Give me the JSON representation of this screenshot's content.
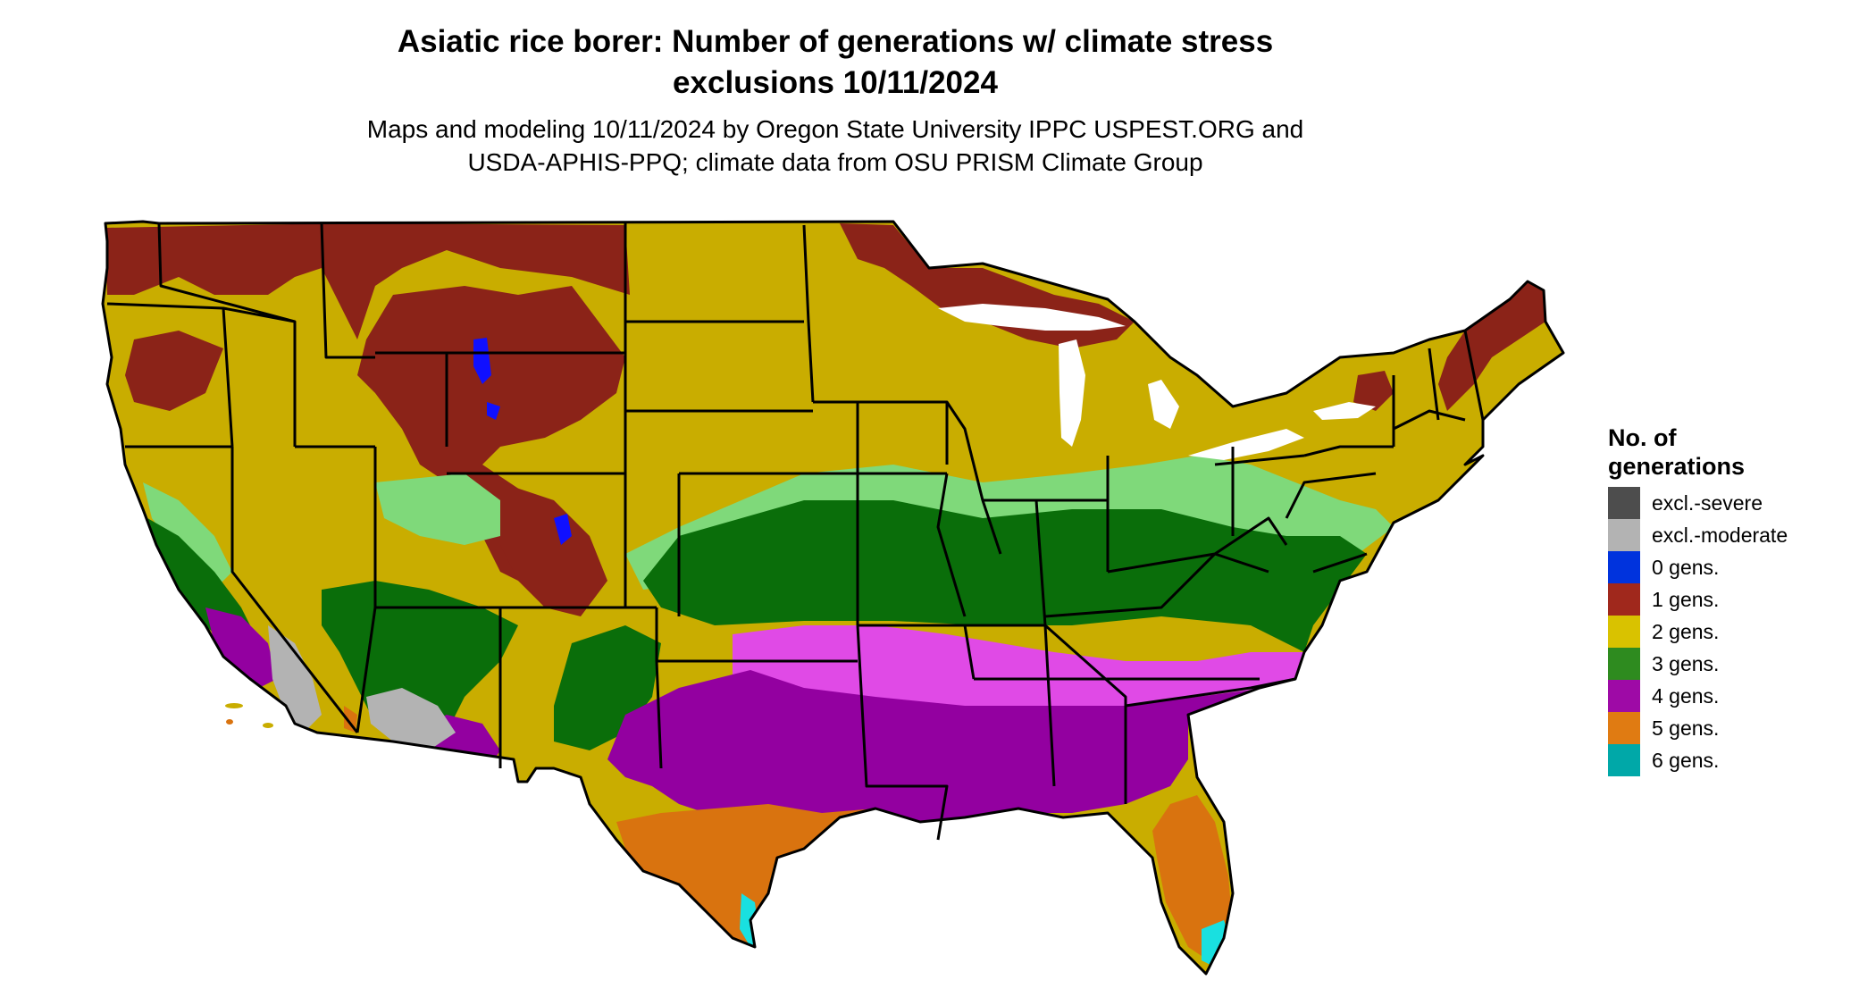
{
  "title_line1": "Asiatic rice borer: Number of generations w/ climate stress",
  "title_line2": "exclusions 10/11/2024",
  "subtitle_line1": "Maps and modeling 10/11/2024 by Oregon State University IPPC USPEST.ORG and",
  "subtitle_line2": "USDA-APHIS-PPQ; climate data from OSU PRISM Climate Group",
  "legend": {
    "title_line1": "No. of",
    "title_line2": "generations",
    "items": [
      {
        "label": "excl.-severe",
        "color": "#4d4d4d"
      },
      {
        "label": "excl.-moderate",
        "color": "#b3b3b3"
      },
      {
        "label": "0 gens.",
        "color": "#0033dd"
      },
      {
        "label": "1 gens.",
        "color": "#a0281c"
      },
      {
        "label": "2 gens.",
        "color": "#d9c200"
      },
      {
        "label": "3 gens.",
        "color": "#2e8b1f"
      },
      {
        "label": "4 gens.",
        "color": "#9e0aa6"
      },
      {
        "label": "5 gens.",
        "color": "#e07b12"
      },
      {
        "label": "6 gens.",
        "color": "#00a8a8"
      }
    ]
  },
  "map_colors": {
    "state_border": "#000000",
    "gen1": "#8b2318",
    "gen2": "#c9ad00",
    "gen3_light": "#7fd97a",
    "gen3": "#0a6e0a",
    "gen4_light": "#e04ae6",
    "gen4": "#9300a0",
    "gen5": "#d9730f",
    "gen6": "#19e0e0",
    "excl_moderate": "#b3b3b3",
    "gen0": "#1010ff"
  }
}
